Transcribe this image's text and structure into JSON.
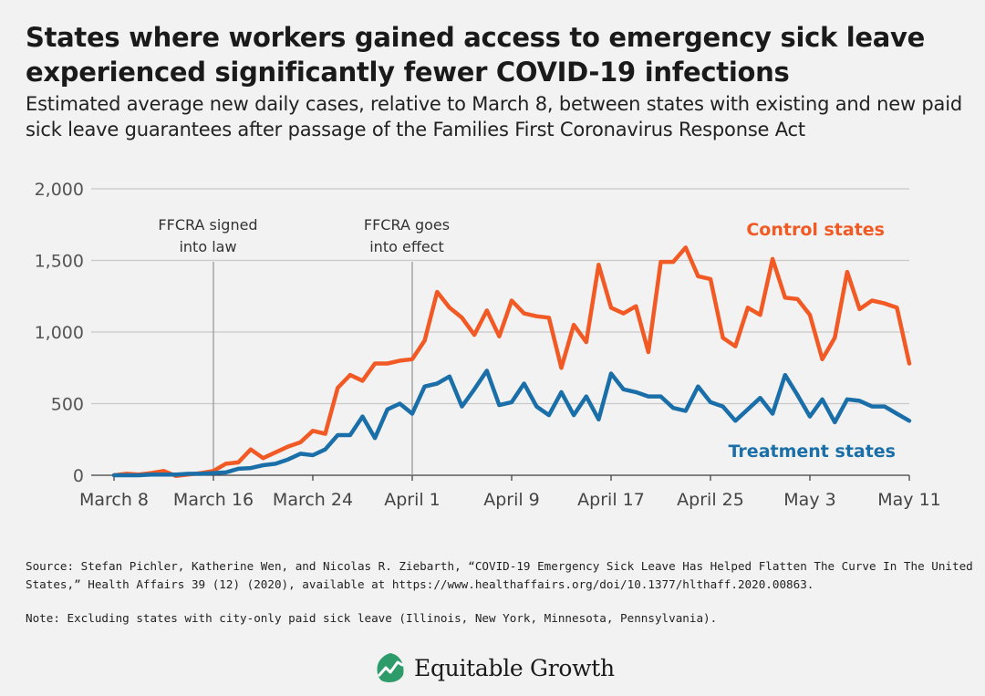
{
  "header": {
    "title": "States where workers gained access to emergency sick leave experienced significantly fewer COVID-19 infections",
    "subtitle": "Estimated average new daily cases, relative to March 8, between states with existing and new paid sick leave guarantees after passage of the Families First Coronavirus Response Act"
  },
  "footer": {
    "source": "Source: Stefan Pichler, Katherine Wen, and Nicolas R. Ziebarth, “COVID-19 Emergency Sick Leave Has Helped Flatten The Curve In The United States,” Health Affairs 39 (12) (2020), available at https://www.healthaffairs.org/doi/10.1377/hlthaff.2020.00863.",
    "note": "Note: Excluding states with city-only paid sick leave (Illinois, New York, Minnesota, Pennsylvania).",
    "brand": "Equitable Growth",
    "brand_logo_icon": "growth-line-leaf-icon",
    "brand_color": "#2e9c6a"
  },
  "chart_data": {
    "type": "line",
    "x_start": "March 8",
    "x_end": "May 11",
    "x_tick_labels": [
      "March 8",
      "March 16",
      "March 24",
      "April 1",
      "April 9",
      "April 17",
      "April 25",
      "May 3",
      "May 11"
    ],
    "y_ticks": [
      0,
      500,
      1000,
      1500,
      2000
    ],
    "y_tick_labels": [
      "0",
      "500",
      "1,000",
      "1,500",
      "2,000"
    ],
    "ylim": [
      0,
      2000
    ],
    "grid": "horizontal",
    "annotations": [
      {
        "day": 8,
        "label_lines": [
          "FFCRA signed",
          "into law"
        ]
      },
      {
        "day": 24,
        "label_lines": [
          "FFCRA goes",
          "into effect"
        ]
      }
    ],
    "series": [
      {
        "name": "Control states",
        "color": "#f15a24",
        "values": [
          0,
          10,
          5,
          15,
          30,
          -5,
          5,
          15,
          30,
          80,
          90,
          180,
          120,
          160,
          200,
          230,
          310,
          290,
          610,
          700,
          660,
          780,
          780,
          800,
          810,
          940,
          1280,
          1170,
          1100,
          980,
          1150,
          970,
          1220,
          1130,
          1110,
          1100,
          750,
          1050,
          930,
          1470,
          1170,
          1130,
          1180,
          860,
          1490,
          1490,
          1590,
          1390,
          1370,
          960,
          900,
          1170,
          1120,
          1510,
          1240,
          1230,
          1120,
          810,
          960,
          1420,
          1160,
          1220,
          1200,
          1170,
          780
        ]
      },
      {
        "name": "Treatment states",
        "color": "#1b6fa8",
        "values": [
          0,
          0,
          0,
          5,
          5,
          5,
          10,
          10,
          15,
          20,
          45,
          50,
          70,
          80,
          110,
          150,
          140,
          180,
          280,
          280,
          410,
          260,
          460,
          500,
          430,
          620,
          640,
          690,
          480,
          600,
          730,
          490,
          510,
          640,
          480,
          420,
          580,
          420,
          550,
          390,
          710,
          600,
          580,
          550,
          550,
          470,
          450,
          620,
          510,
          480,
          380,
          460,
          540,
          430,
          700,
          560,
          410,
          530,
          370,
          530,
          520,
          480,
          480,
          430,
          380
        ]
      }
    ]
  }
}
